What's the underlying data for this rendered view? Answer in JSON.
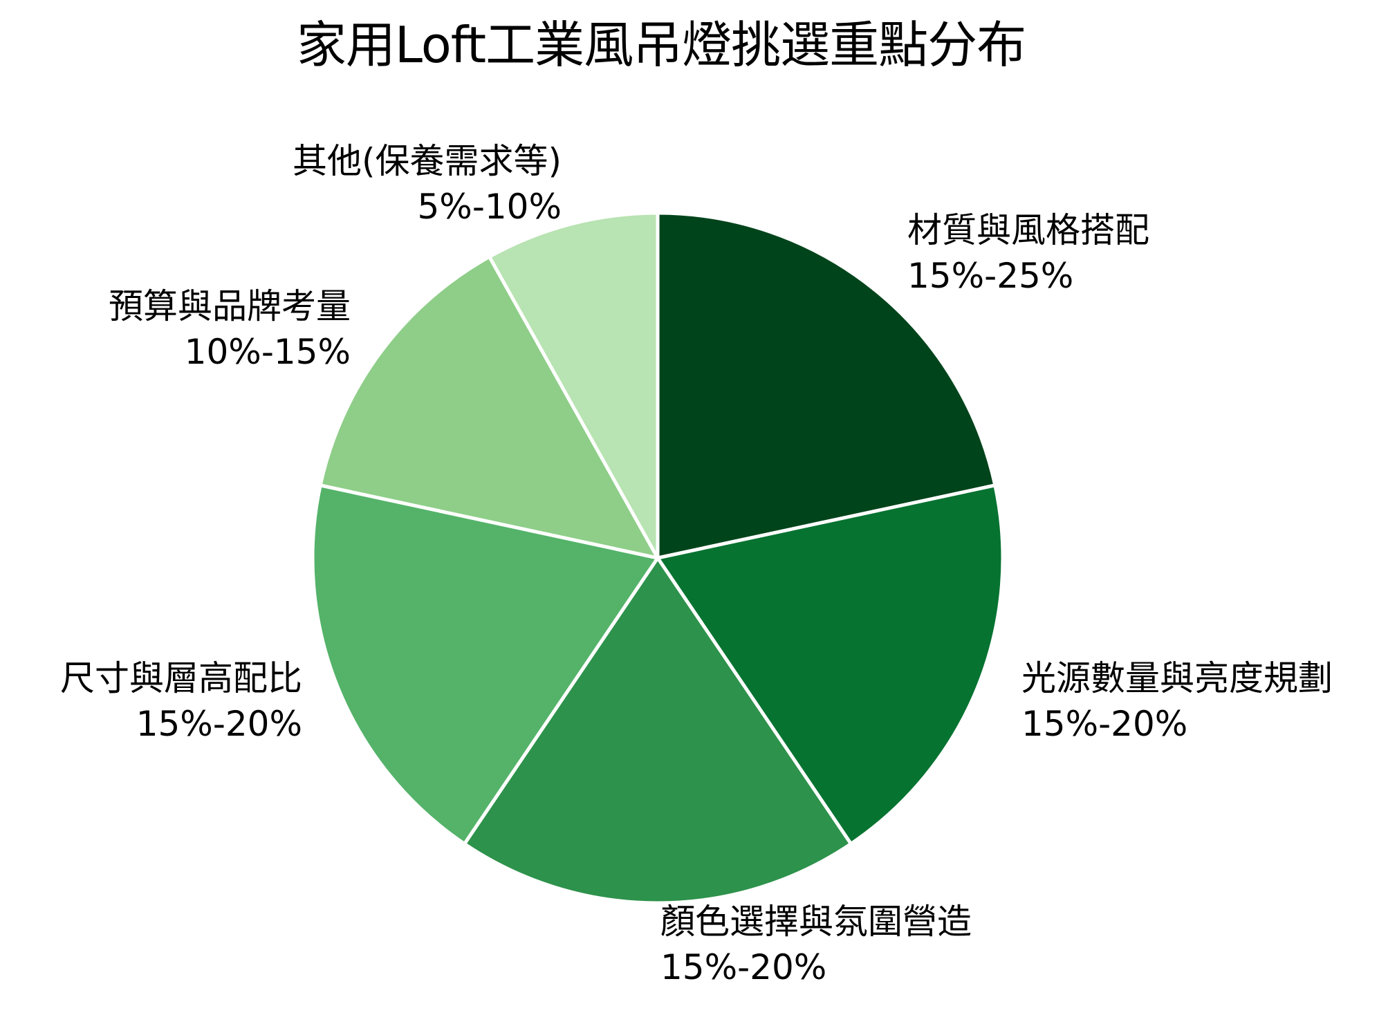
{
  "chart_data": {
    "type": "pie",
    "title": "家用Loft工業風吊燈挑選重點分布",
    "start_angle": "top (90°), clockwise",
    "categories": [
      "材質與風格搭配",
      "光源數量與亮度規劃",
      "顏色選擇與氛圍營造",
      "尺寸與層高配比",
      "預算與品牌考量",
      "其他(保養需求等)"
    ],
    "range_labels": [
      "15%-25%",
      "15%-20%",
      "15%-20%",
      "15%-20%",
      "10%-15%",
      "5%-10%"
    ],
    "values": [
      20,
      17.5,
      17.5,
      17.5,
      12.5,
      7.5
    ],
    "colors": [
      "#00441b",
      "#077331",
      "#2d924b",
      "#54b369",
      "#8ece88",
      "#b8e3b2"
    ],
    "legend": "none (labels outside slices)"
  },
  "title": "家用Loft工業風吊燈挑選重點分布",
  "slices": [
    {
      "name": "材質與風格搭配",
      "range": "15%-25%"
    },
    {
      "name": "光源數量與亮度規劃",
      "range": "15%-20%"
    },
    {
      "name": "顏色選擇與氛圍營造",
      "range": "15%-20%"
    },
    {
      "name": "尺寸與層高配比",
      "range": "15%-20%"
    },
    {
      "name": "預算與品牌考量",
      "range": "10%-15%"
    },
    {
      "name": "其他(保養需求等)",
      "range": "5%-10%"
    }
  ]
}
